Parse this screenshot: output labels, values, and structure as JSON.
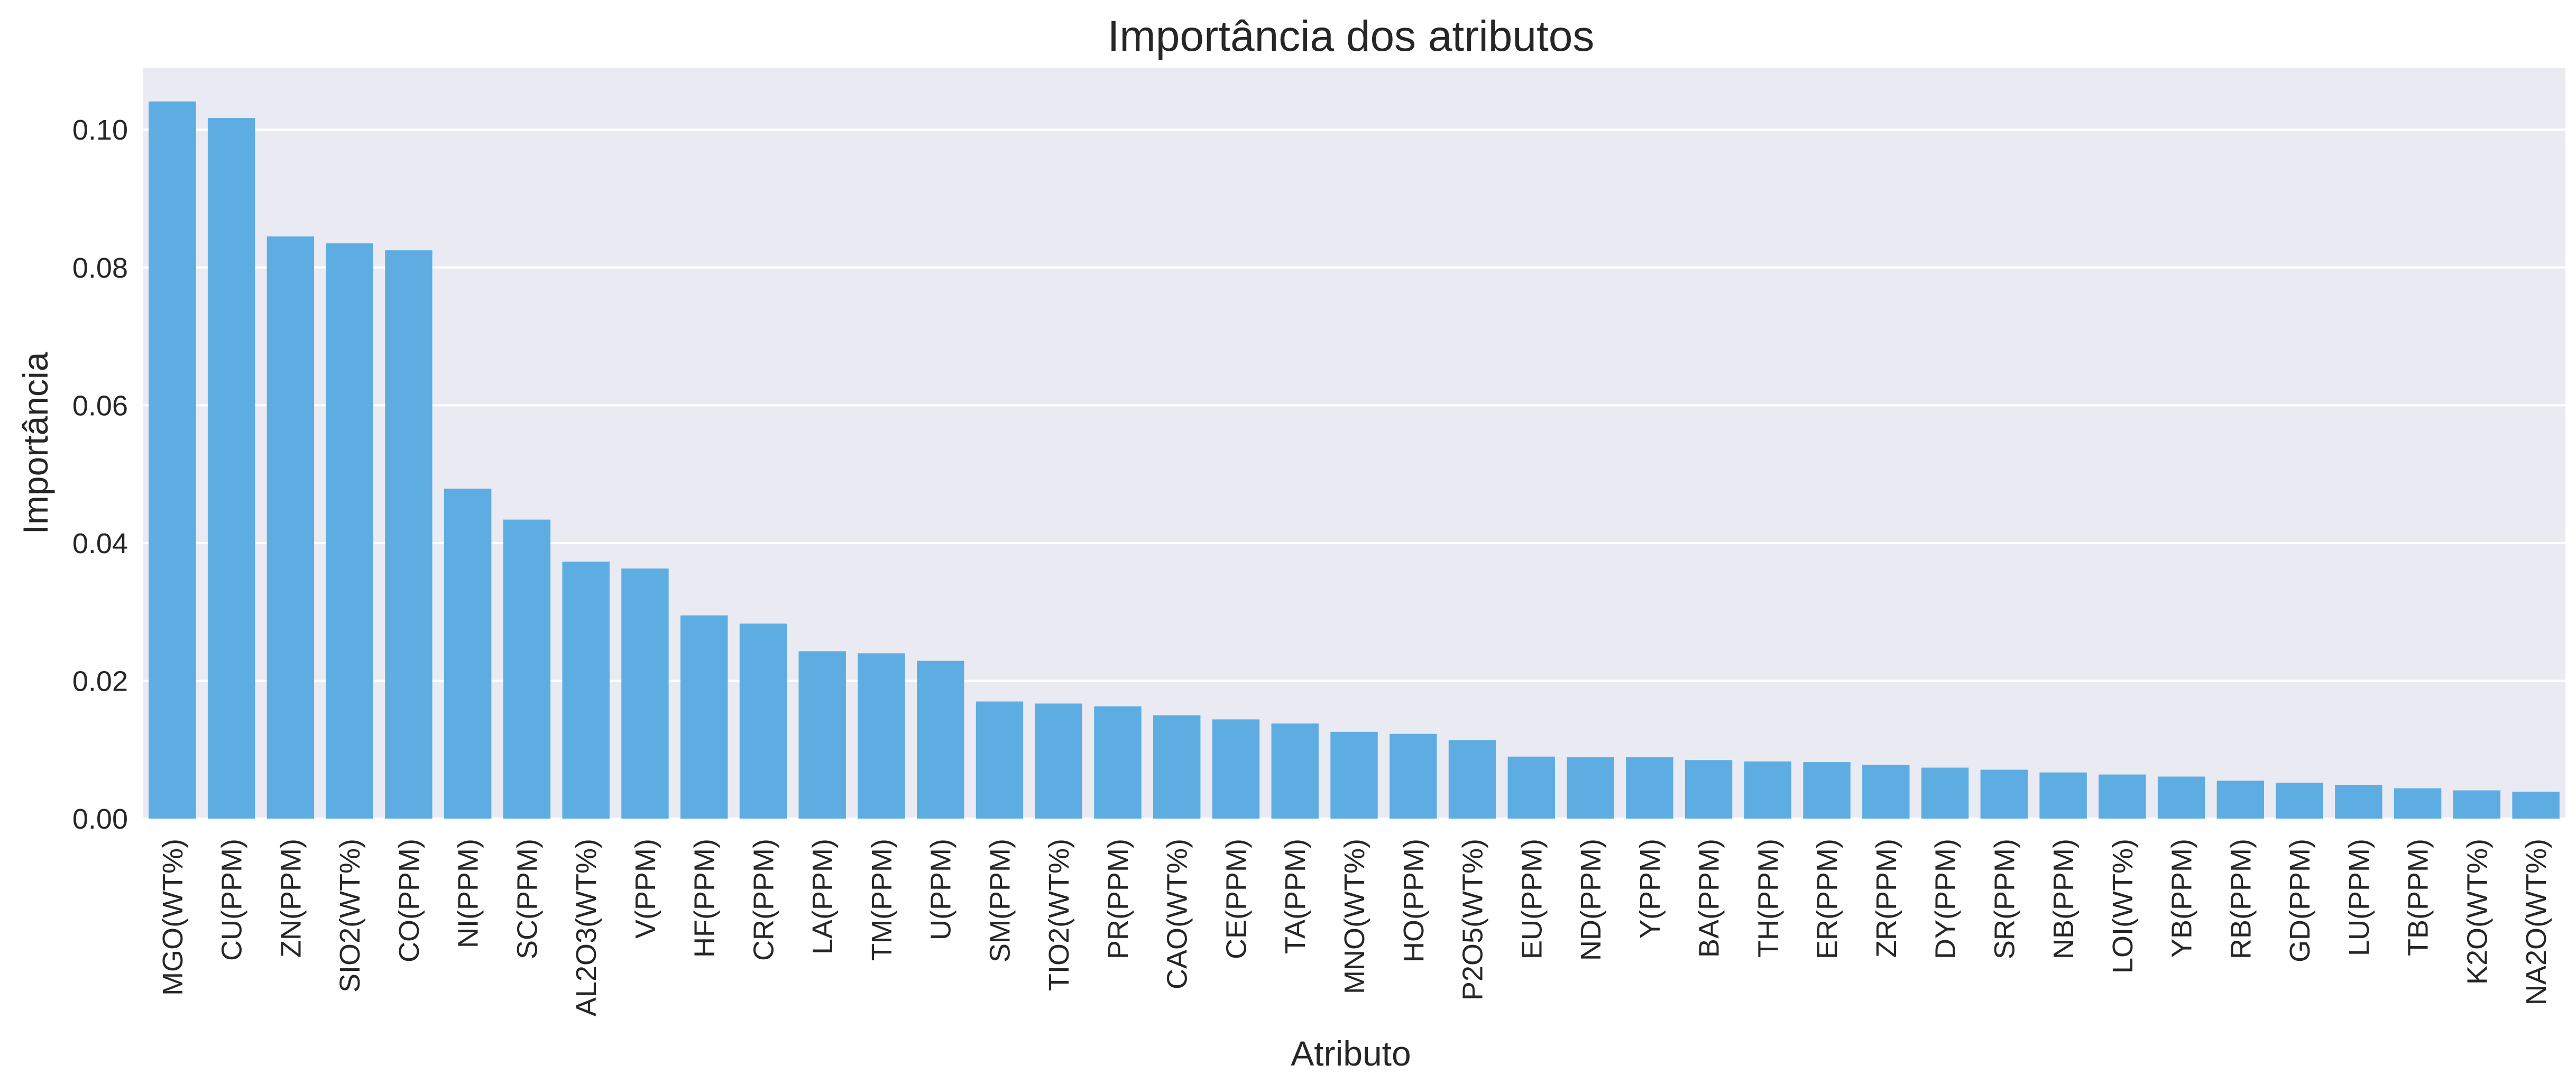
{
  "chart_data": {
    "type": "bar",
    "title": "Importância dos atributos",
    "xlabel": "Atributo",
    "ylabel": "Importância",
    "ylim": [
      0,
      0.109
    ],
    "yticks": [
      "0.00",
      "0.02",
      "0.04",
      "0.06",
      "0.08",
      "0.10"
    ],
    "grid": true,
    "categories": [
      "MGO(WT%)",
      "CU(PPM)",
      "ZN(PPM)",
      "SIO2(WT%)",
      "CO(PPM)",
      "NI(PPM)",
      "SC(PPM)",
      "AL2O3(WT%)",
      "V(PPM)",
      "HF(PPM)",
      "CR(PPM)",
      "LA(PPM)",
      "TM(PPM)",
      "U(PPM)",
      "SM(PPM)",
      "TIO2(WT%)",
      "PR(PPM)",
      "CAO(WT%)",
      "CE(PPM)",
      "TA(PPM)",
      "MNO(WT%)",
      "HO(PPM)",
      "P2O5(WT%)",
      "EU(PPM)",
      "ND(PPM)",
      "Y(PPM)",
      "BA(PPM)",
      "TH(PPM)",
      "ER(PPM)",
      "ZR(PPM)",
      "DY(PPM)",
      "SR(PPM)",
      "NB(PPM)",
      "LOI(WT%)",
      "YB(PPM)",
      "RB(PPM)",
      "GD(PPM)",
      "LU(PPM)",
      "TB(PPM)",
      "K2O(WT%)",
      "NA2O(WT%)"
    ],
    "values": [
      0.1041,
      0.1017,
      0.0845,
      0.0835,
      0.0825,
      0.0479,
      0.0434,
      0.0373,
      0.0363,
      0.0295,
      0.0283,
      0.0243,
      0.024,
      0.0229,
      0.017,
      0.0167,
      0.0163,
      0.015,
      0.0144,
      0.0138,
      0.0126,
      0.0123,
      0.0114,
      0.009,
      0.0089,
      0.0089,
      0.0085,
      0.0083,
      0.0082,
      0.0078,
      0.0074,
      0.0071,
      0.0067,
      0.0064,
      0.0061,
      0.0055,
      0.0052,
      0.0049,
      0.0044,
      0.0041,
      0.0039
    ],
    "colors": {
      "bar": "#5dade2",
      "plot_bg": "#eaeaf2",
      "grid": "#ffffff",
      "text": "#262626"
    }
  }
}
